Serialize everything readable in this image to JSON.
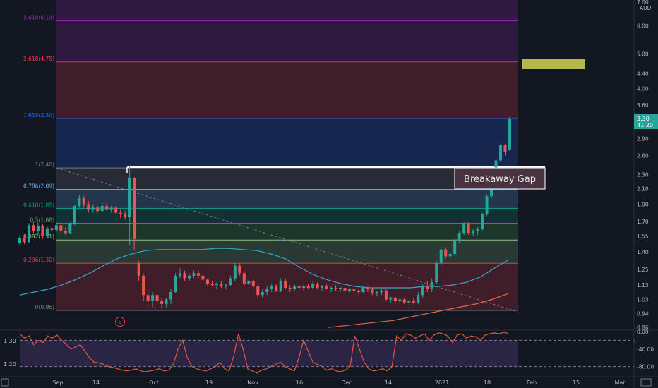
{
  "chart_data": {
    "type": "candlestick",
    "price_axis": {
      "top_labels": [
        "7.00",
        "AUD"
      ],
      "ticks": [
        "6.00",
        "5.00",
        "4.40",
        "4.00",
        "3.60",
        "2.90",
        "2.60",
        "2.30",
        "2.10",
        "1.90",
        "1.70",
        "1.55",
        "1.40",
        "1.25",
        "1.13",
        "1.03",
        "0.94",
        "0.86"
      ],
      "tick_values": [
        6.0,
        5.0,
        4.4,
        4.0,
        3.6,
        2.9,
        2.6,
        2.3,
        2.1,
        1.9,
        1.7,
        1.55,
        1.4,
        1.25,
        1.13,
        1.03,
        0.94,
        0.86
      ],
      "last_price": "3.30",
      "countdown": "41:20",
      "scale": "log"
    },
    "time_axis": {
      "labels": [
        "Sep",
        "14",
        "Oct",
        "19",
        "Nov",
        "16",
        "Dec",
        "14",
        "2021",
        "18",
        "Feb",
        "15",
        "Mar"
      ]
    },
    "fib_levels": [
      {
        "label": "0(0.96)",
        "value": 0.96,
        "color": "#787b86"
      },
      {
        "label": "0.236(1.30)",
        "value": 1.3,
        "color": "#f23645"
      },
      {
        "label": "0.382(1.51)",
        "value": 1.51,
        "color": "#81c784"
      },
      {
        "label": "0.5(1.68)",
        "value": 1.68,
        "color": "#4caf50"
      },
      {
        "label": "0.618(1.85)",
        "value": 1.85,
        "color": "#089981"
      },
      {
        "label": "0.786(2.09)",
        "value": 2.09,
        "color": "#64b5f6"
      },
      {
        "label": "1(2.40)",
        "value": 2.4,
        "color": "#787b86"
      },
      {
        "label": "1.618(3.30)",
        "value": 3.3,
        "color": "#2962ff"
      },
      {
        "label": "2.618(4.75)",
        "value": 4.75,
        "color": "#f23645"
      },
      {
        "label": "3.618(6.19)",
        "value": 6.19,
        "color": "#9c27b0"
      }
    ],
    "annotation": "Breakaway Gap",
    "earnings_marker": "E",
    "candles": [
      [
        1.48,
        1.55,
        1.46,
        1.53
      ],
      [
        1.53,
        1.56,
        1.47,
        1.49
      ],
      [
        1.49,
        1.68,
        1.48,
        1.66
      ],
      [
        1.66,
        1.7,
        1.58,
        1.6
      ],
      [
        1.6,
        1.69,
        1.56,
        1.65
      ],
      [
        1.65,
        1.68,
        1.52,
        1.55
      ],
      [
        1.55,
        1.65,
        1.53,
        1.63
      ],
      [
        1.63,
        1.66,
        1.58,
        1.61
      ],
      [
        1.61,
        1.7,
        1.59,
        1.66
      ],
      [
        1.66,
        1.67,
        1.58,
        1.6
      ],
      [
        1.6,
        1.64,
        1.56,
        1.58
      ],
      [
        1.58,
        1.7,
        1.57,
        1.68
      ],
      [
        1.68,
        1.9,
        1.66,
        1.88
      ],
      [
        1.88,
        2.02,
        1.86,
        1.98
      ],
      [
        1.98,
        2.0,
        1.86,
        1.9
      ],
      [
        1.9,
        1.94,
        1.8,
        1.84
      ],
      [
        1.84,
        1.9,
        1.8,
        1.86
      ],
      [
        1.86,
        1.88,
        1.8,
        1.82
      ],
      [
        1.82,
        1.92,
        1.8,
        1.88
      ],
      [
        1.88,
        1.92,
        1.82,
        1.84
      ],
      [
        1.84,
        1.88,
        1.8,
        1.86
      ],
      [
        1.86,
        1.88,
        1.78,
        1.8
      ],
      [
        1.8,
        1.84,
        1.74,
        1.78
      ],
      [
        1.78,
        1.82,
        1.72,
        1.75
      ],
      [
        1.75,
        2.44,
        1.46,
        2.25
      ],
      [
        2.25,
        2.26,
        1.42,
        1.52
      ],
      [
        1.3,
        1.32,
        1.16,
        1.2
      ],
      [
        1.2,
        1.22,
        1.02,
        1.06
      ],
      [
        1.06,
        1.1,
        0.98,
        1.02
      ],
      [
        1.02,
        1.08,
        0.98,
        1.06
      ],
      [
        1.06,
        1.08,
        0.99,
        1.02
      ],
      [
        1.02,
        1.04,
        0.97,
        1.0
      ],
      [
        1.0,
        1.04,
        0.98,
        1.03
      ],
      [
        1.03,
        1.1,
        1.0,
        1.08
      ],
      [
        1.08,
        1.22,
        1.07,
        1.2
      ],
      [
        1.2,
        1.26,
        1.18,
        1.22
      ],
      [
        1.22,
        1.24,
        1.16,
        1.18
      ],
      [
        1.18,
        1.22,
        1.16,
        1.2
      ],
      [
        1.2,
        1.24,
        1.18,
        1.22
      ],
      [
        1.22,
        1.24,
        1.18,
        1.2
      ],
      [
        1.2,
        1.22,
        1.16,
        1.17
      ],
      [
        1.17,
        1.18,
        1.12,
        1.14
      ],
      [
        1.14,
        1.16,
        1.12,
        1.13
      ],
      [
        1.13,
        1.15,
        1.1,
        1.14
      ],
      [
        1.14,
        1.16,
        1.11,
        1.12
      ],
      [
        1.12,
        1.14,
        1.1,
        1.13
      ],
      [
        1.13,
        1.2,
        1.12,
        1.18
      ],
      [
        1.18,
        1.3,
        1.16,
        1.28
      ],
      [
        1.28,
        1.3,
        1.2,
        1.22
      ],
      [
        1.22,
        1.24,
        1.12,
        1.14
      ],
      [
        1.14,
        1.18,
        1.12,
        1.16
      ],
      [
        1.16,
        1.18,
        1.1,
        1.12
      ],
      [
        1.12,
        1.14,
        1.04,
        1.06
      ],
      [
        1.06,
        1.1,
        1.04,
        1.08
      ],
      [
        1.08,
        1.12,
        1.06,
        1.1
      ],
      [
        1.1,
        1.14,
        1.08,
        1.12
      ],
      [
        1.12,
        1.14,
        1.08,
        1.09
      ],
      [
        1.09,
        1.18,
        1.08,
        1.16
      ],
      [
        1.16,
        1.18,
        1.1,
        1.11
      ],
      [
        1.11,
        1.13,
        1.08,
        1.1
      ],
      [
        1.1,
        1.14,
        1.09,
        1.12
      ],
      [
        1.12,
        1.14,
        1.1,
        1.11
      ],
      [
        1.11,
        1.13,
        1.09,
        1.12
      ],
      [
        1.12,
        1.14,
        1.1,
        1.11
      ],
      [
        1.11,
        1.16,
        1.1,
        1.14
      ],
      [
        1.14,
        1.15,
        1.1,
        1.11
      ],
      [
        1.11,
        1.13,
        1.09,
        1.12
      ],
      [
        1.12,
        1.14,
        1.1,
        1.1
      ],
      [
        1.1,
        1.12,
        1.08,
        1.11
      ],
      [
        1.11,
        1.13,
        1.09,
        1.1
      ],
      [
        1.1,
        1.12,
        1.08,
        1.11
      ],
      [
        1.11,
        1.12,
        1.08,
        1.09
      ],
      [
        1.09,
        1.11,
        1.07,
        1.1
      ],
      [
        1.1,
        1.12,
        1.08,
        1.09
      ],
      [
        1.09,
        1.1,
        1.06,
        1.08
      ],
      [
        1.08,
        1.12,
        1.07,
        1.11
      ],
      [
        1.11,
        1.12,
        1.08,
        1.1
      ],
      [
        1.1,
        1.11,
        1.06,
        1.07
      ],
      [
        1.07,
        1.09,
        1.05,
        1.08
      ],
      [
        1.08,
        1.1,
        1.06,
        1.09
      ],
      [
        1.09,
        1.1,
        1.02,
        1.03
      ],
      [
        1.03,
        1.05,
        1.01,
        1.04
      ],
      [
        1.04,
        1.05,
        1.0,
        1.02
      ],
      [
        1.02,
        1.04,
        1.0,
        1.03
      ],
      [
        1.03,
        1.04,
        1.0,
        1.01
      ],
      [
        1.01,
        1.03,
        0.99,
        1.02
      ],
      [
        1.02,
        1.04,
        1.0,
        1.01
      ],
      [
        1.01,
        1.08,
        1.0,
        1.06
      ],
      [
        1.06,
        1.14,
        1.04,
        1.12
      ],
      [
        1.12,
        1.16,
        1.08,
        1.1
      ],
      [
        1.1,
        1.18,
        1.08,
        1.15
      ],
      [
        1.15,
        1.32,
        1.14,
        1.3
      ],
      [
        1.3,
        1.45,
        1.28,
        1.42
      ],
      [
        1.42,
        1.44,
        1.34,
        1.36
      ],
      [
        1.36,
        1.4,
        1.33,
        1.38
      ],
      [
        1.38,
        1.52,
        1.36,
        1.5
      ],
      [
        1.5,
        1.6,
        1.48,
        1.58
      ],
      [
        1.58,
        1.7,
        1.56,
        1.68
      ],
      [
        1.68,
        1.7,
        1.56,
        1.58
      ],
      [
        1.58,
        1.62,
        1.55,
        1.6
      ],
      [
        1.6,
        1.64,
        1.56,
        1.62
      ],
      [
        1.62,
        1.8,
        1.6,
        1.78
      ],
      [
        1.78,
        2.02,
        1.76,
        2.0
      ],
      [
        2.0,
        2.4,
        1.98,
        2.38
      ],
      [
        2.38,
        2.56,
        2.34,
        2.52
      ],
      [
        2.52,
        2.8,
        2.5,
        2.78
      ],
      [
        2.78,
        2.8,
        2.6,
        2.66
      ],
      [
        2.7,
        3.36,
        2.68,
        3.3
      ]
    ],
    "ma_long": [
      1.06,
      1.08,
      1.1,
      1.13,
      1.17,
      1.22,
      1.28,
      1.34,
      1.38,
      1.41,
      1.42,
      1.42,
      1.42,
      1.42,
      1.43,
      1.43,
      1.42,
      1.41,
      1.38,
      1.34,
      1.27,
      1.21,
      1.17,
      1.14,
      1.12,
      1.11,
      1.11,
      1.11,
      1.11,
      1.12,
      1.12,
      1.13,
      1.15,
      1.19,
      1.26,
      1.33
    ],
    "ma_short": [
      0.86,
      0.87,
      0.88,
      0.89,
      0.9,
      0.92,
      0.94,
      0.96,
      0.98,
      1.0,
      1.03,
      1.07
    ],
    "oscillator": {
      "left_ticks": [
        "1.30",
        "1.20"
      ],
      "right_ticks": [
        "0.00",
        "-40.00",
        "-80.00"
      ],
      "values": [
        -5,
        -15,
        -10,
        -30,
        -20,
        -25,
        -10,
        -15,
        -8,
        -20,
        -30,
        -40,
        -35,
        -30,
        -45,
        -60,
        -70,
        -72,
        -75,
        -80,
        -82,
        -85,
        -88,
        -90,
        -88,
        -85,
        -90,
        -92,
        -90,
        -88,
        -85,
        -90,
        -88,
        -75,
        -40,
        -20,
        -60,
        -80,
        -85,
        -88,
        -90,
        -85,
        -80,
        -70,
        -85,
        -90,
        -55,
        -5,
        -40,
        -85,
        -90,
        -95,
        -88,
        -85,
        -80,
        -75,
        -70,
        -80,
        -85,
        -90,
        -60,
        -20,
        -45,
        -70,
        -75,
        -80,
        -88,
        -85,
        -90,
        -92,
        -88,
        -80,
        -10,
        -40,
        -70,
        -85,
        -90,
        -88,
        -85,
        -90,
        -80,
        -10,
        -20,
        -5,
        -8,
        -15,
        -10,
        -5,
        -20,
        -8,
        -3,
        -5,
        -10,
        -25,
        -8,
        -5,
        -15,
        -10,
        -12,
        -20,
        -8,
        -5,
        -3,
        -5,
        -2,
        -4
      ]
    }
  }
}
